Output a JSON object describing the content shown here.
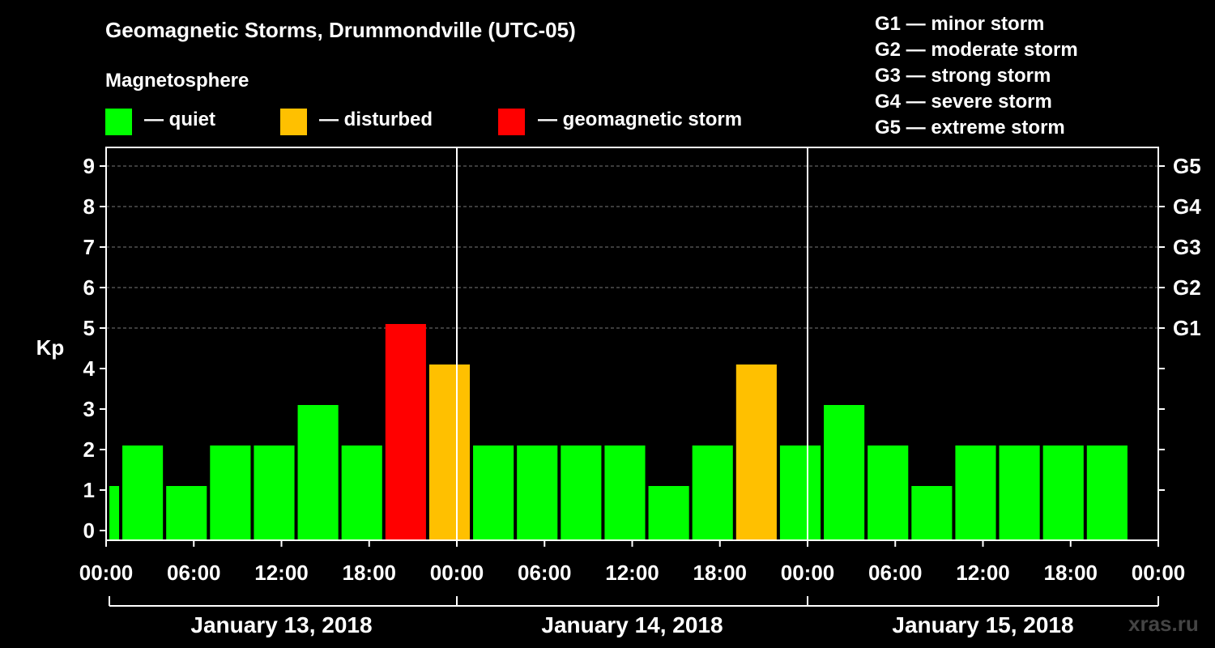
{
  "title": "Geomagnetic Storms, Drummondville (UTC-05)",
  "magnetosphere": {
    "title": "Magnetosphere",
    "items": [
      {
        "label": "— quiet",
        "color": "#00ff00"
      },
      {
        "label": "— disturbed",
        "color": "#ffc000"
      },
      {
        "label": "— geomagnetic storm",
        "color": "#ff0000"
      }
    ]
  },
  "storm_scale": [
    "G1 — minor storm",
    "G2 — moderate storm",
    "G3 — strong storm",
    "G4 — severe storm",
    "G5 — extreme storm"
  ],
  "watermark": "xras.ru",
  "chart_data": {
    "type": "bar",
    "title": "Geomagnetic Storms, Drummondville (UTC-05)",
    "ylabel": "Kp",
    "ylim": [
      0,
      9
    ],
    "y_ticks": [
      "0",
      "1",
      "2",
      "3",
      "4",
      "5",
      "6",
      "7",
      "8",
      "9"
    ],
    "right_ticks": [
      {
        "kp": 5,
        "label": "G1"
      },
      {
        "kp": 6,
        "label": "G2"
      },
      {
        "kp": 7,
        "label": "G3"
      },
      {
        "kp": 8,
        "label": "G4"
      },
      {
        "kp": 9,
        "label": "G5"
      }
    ],
    "x_ticks": [
      "00:00",
      "06:00",
      "12:00",
      "18:00",
      "00:00",
      "06:00",
      "12:00",
      "18:00",
      "00:00",
      "06:00",
      "12:00",
      "18:00",
      "00:00"
    ],
    "days": [
      "January 13, 2018",
      "January 14, 2018",
      "January 15, 2018"
    ],
    "bars": [
      {
        "start_hour": 0,
        "end_hour": 1,
        "kp": 1,
        "level": "quiet"
      },
      {
        "start_hour": 1,
        "end_hour": 4,
        "kp": 2,
        "level": "quiet"
      },
      {
        "start_hour": 4,
        "end_hour": 7,
        "kp": 1,
        "level": "quiet"
      },
      {
        "start_hour": 7,
        "end_hour": 10,
        "kp": 2,
        "level": "quiet"
      },
      {
        "start_hour": 10,
        "end_hour": 13,
        "kp": 2,
        "level": "quiet"
      },
      {
        "start_hour": 13,
        "end_hour": 16,
        "kp": 3,
        "level": "quiet"
      },
      {
        "start_hour": 16,
        "end_hour": 19,
        "kp": 2,
        "level": "quiet"
      },
      {
        "start_hour": 19,
        "end_hour": 22,
        "kp": 5,
        "level": "storm"
      },
      {
        "start_hour": 22,
        "end_hour": 25,
        "kp": 4,
        "level": "disturbed"
      },
      {
        "start_hour": 25,
        "end_hour": 28,
        "kp": 2,
        "level": "quiet"
      },
      {
        "start_hour": 28,
        "end_hour": 31,
        "kp": 2,
        "level": "quiet"
      },
      {
        "start_hour": 31,
        "end_hour": 34,
        "kp": 2,
        "level": "quiet"
      },
      {
        "start_hour": 34,
        "end_hour": 37,
        "kp": 2,
        "level": "quiet"
      },
      {
        "start_hour": 37,
        "end_hour": 40,
        "kp": 1,
        "level": "quiet"
      },
      {
        "start_hour": 40,
        "end_hour": 43,
        "kp": 2,
        "level": "quiet"
      },
      {
        "start_hour": 43,
        "end_hour": 46,
        "kp": 4,
        "level": "disturbed"
      },
      {
        "start_hour": 46,
        "end_hour": 49,
        "kp": 2,
        "level": "quiet"
      },
      {
        "start_hour": 49,
        "end_hour": 52,
        "kp": 3,
        "level": "quiet"
      },
      {
        "start_hour": 52,
        "end_hour": 55,
        "kp": 2,
        "level": "quiet"
      },
      {
        "start_hour": 55,
        "end_hour": 58,
        "kp": 1,
        "level": "quiet"
      },
      {
        "start_hour": 58,
        "end_hour": 61,
        "kp": 2,
        "level": "quiet"
      },
      {
        "start_hour": 61,
        "end_hour": 64,
        "kp": 2,
        "level": "quiet"
      },
      {
        "start_hour": 64,
        "end_hour": 67,
        "kp": 2,
        "level": "quiet"
      },
      {
        "start_hour": 67,
        "end_hour": 70,
        "kp": 2,
        "level": "quiet"
      }
    ],
    "level_colors": {
      "quiet": "#00ff00",
      "disturbed": "#ffc000",
      "storm": "#ff0000"
    }
  }
}
